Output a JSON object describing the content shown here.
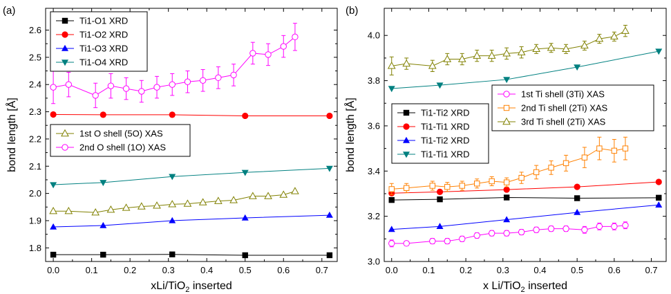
{
  "chart_data": [
    {
      "type": "line",
      "panel_label": "(a)",
      "xlabel": "xLi/TiO",
      "xlabel_sub": "2",
      "xlabel_tail": " inserted",
      "ylabel": "bond length [Å]",
      "xlim": [
        -0.02,
        0.74
      ],
      "ylim": [
        1.75,
        2.68
      ],
      "xticks": [
        0.0,
        0.1,
        0.2,
        0.3,
        0.4,
        0.5,
        0.6,
        0.7
      ],
      "yticks": [
        1.8,
        1.9,
        2.0,
        2.1,
        2.2,
        2.3,
        2.4,
        2.5,
        2.6
      ],
      "xtick_labels": [
        "0.0",
        "0.1",
        "0.2",
        "0.3",
        "0.4",
        "0.5",
        "0.6",
        "0.7"
      ],
      "ytick_labels": [
        "1.8",
        "1.9",
        "2.0",
        "2.1",
        "2.2",
        "2.3",
        "2.4",
        "2.5",
        "2.6"
      ],
      "legends": [
        {
          "group": "xrd",
          "entries": [
            0,
            1,
            2,
            3
          ]
        },
        {
          "group": "xas",
          "entries": [
            4,
            5
          ]
        }
      ],
      "series": [
        {
          "name": "Ti1-O1 XRD",
          "color": "#000000",
          "marker": "square",
          "x": [
            0.0,
            0.13,
            0.31,
            0.5,
            0.72
          ],
          "y": [
            1.775,
            1.775,
            1.776,
            1.773,
            1.773
          ]
        },
        {
          "name": "Ti1-O2 XRD",
          "color": "#ff0000",
          "marker": "circle",
          "x": [
            0.0,
            0.13,
            0.31,
            0.5,
            0.72
          ],
          "y": [
            2.29,
            2.289,
            2.289,
            2.285,
            2.285
          ]
        },
        {
          "name": "Ti1-O3 XRD",
          "color": "#0000ff",
          "marker": "triangle-up",
          "x": [
            0.0,
            0.13,
            0.31,
            0.5,
            0.72
          ],
          "y": [
            1.877,
            1.882,
            1.9,
            1.91,
            1.92
          ]
        },
        {
          "name": "Ti1-O4 XRD",
          "color": "#008080",
          "marker": "triangle-down",
          "x": [
            0.0,
            0.13,
            0.31,
            0.5,
            0.72
          ],
          "y": [
            2.032,
            2.04,
            2.062,
            2.077,
            2.092
          ]
        },
        {
          "name": "1st O shell (5O) XAS",
          "color": "#808000",
          "marker": "open-triangle-up",
          "x": [
            0.0,
            0.04,
            0.11,
            0.15,
            0.19,
            0.23,
            0.27,
            0.31,
            0.35,
            0.39,
            0.43,
            0.47,
            0.52,
            0.56,
            0.6,
            0.63
          ],
          "y": [
            1.935,
            1.935,
            1.93,
            1.94,
            1.947,
            1.952,
            1.955,
            1.96,
            1.962,
            1.967,
            1.972,
            1.975,
            1.99,
            1.99,
            1.995,
            2.008
          ]
        },
        {
          "name": "2nd O shell (1O) XAS",
          "color": "#ff00ff",
          "marker": "open-circle",
          "x": [
            0.0,
            0.04,
            0.11,
            0.15,
            0.19,
            0.23,
            0.27,
            0.31,
            0.35,
            0.39,
            0.43,
            0.47,
            0.52,
            0.56,
            0.6,
            0.63
          ],
          "y": [
            2.39,
            2.4,
            2.36,
            2.395,
            2.385,
            2.375,
            2.39,
            2.4,
            2.41,
            2.415,
            2.425,
            2.435,
            2.515,
            2.51,
            2.54,
            2.575
          ],
          "err": [
            0.06,
            0.045,
            0.045,
            0.045,
            0.04,
            0.04,
            0.04,
            0.04,
            0.04,
            0.04,
            0.04,
            0.04,
            0.04,
            0.04,
            0.04,
            0.05
          ]
        }
      ]
    },
    {
      "type": "line",
      "panel_label": "(b)",
      "xlabel": "x Li/TiO",
      "xlabel_sub": "2",
      "xlabel_tail": " inserted",
      "ylabel": "bond length [Å]",
      "xlim": [
        -0.02,
        0.74
      ],
      "ylim": [
        3.0,
        4.12
      ],
      "xticks": [
        0.0,
        0.1,
        0.2,
        0.3,
        0.4,
        0.5,
        0.6,
        0.7
      ],
      "yticks": [
        3.0,
        3.2,
        3.4,
        3.6,
        3.8,
        4.0
      ],
      "xtick_labels": [
        "0.0",
        "0.1",
        "0.2",
        "0.3",
        "0.4",
        "0.5",
        "0.6",
        "0.7"
      ],
      "ytick_labels": [
        "3.0",
        "3.2",
        "3.4",
        "3.6",
        "3.8",
        "4.0"
      ],
      "legends": [
        {
          "group": "xrd",
          "entries": [
            0,
            1,
            2,
            3
          ]
        },
        {
          "group": "xas",
          "entries": [
            4,
            5,
            6
          ]
        }
      ],
      "series": [
        {
          "name": "Ti1-Ti2 XRD",
          "color": "#000000",
          "marker": "square",
          "x": [
            0.0,
            0.13,
            0.31,
            0.5,
            0.72
          ],
          "y": [
            3.272,
            3.275,
            3.283,
            3.28,
            3.282
          ]
        },
        {
          "name": "Ti1-Ti1 XRD",
          "color": "#ff0000",
          "marker": "circle",
          "x": [
            0.0,
            0.13,
            0.31,
            0.5,
            0.72
          ],
          "y": [
            3.302,
            3.308,
            3.318,
            3.33,
            3.352
          ]
        },
        {
          "name": "Ti1-Ti2 XRD",
          "color": "#0000ff",
          "marker": "triangle-up",
          "x": [
            0.0,
            0.13,
            0.31,
            0.5,
            0.72
          ],
          "y": [
            3.142,
            3.155,
            3.185,
            3.217,
            3.25
          ]
        },
        {
          "name": "Ti1-Ti1 XRD",
          "color": "#008080",
          "marker": "triangle-down",
          "x": [
            0.0,
            0.13,
            0.31,
            0.5,
            0.72
          ],
          "y": [
            3.765,
            3.78,
            3.805,
            3.86,
            3.93
          ]
        },
        {
          "name": "1st Ti shell (3Ti) XAS",
          "color": "#ff00ff",
          "marker": "open-circle",
          "x": [
            0.0,
            0.04,
            0.11,
            0.15,
            0.19,
            0.23,
            0.27,
            0.31,
            0.35,
            0.39,
            0.43,
            0.47,
            0.52,
            0.56,
            0.6,
            0.63
          ],
          "y": [
            3.08,
            3.08,
            3.09,
            3.09,
            3.1,
            3.115,
            3.125,
            3.125,
            3.13,
            3.14,
            3.145,
            3.145,
            3.14,
            3.155,
            3.155,
            3.16
          ],
          "err": [
            0.015,
            0.01,
            0.012,
            0.012,
            0.012,
            0.012,
            0.012,
            0.012,
            0.012,
            0.012,
            0.012,
            0.012,
            0.015,
            0.015,
            0.015,
            0.015
          ]
        },
        {
          "name": "2nd Ti shell (2Ti) XAS",
          "color": "#ff8000",
          "marker": "open-square",
          "x": [
            0.0,
            0.04,
            0.11,
            0.15,
            0.19,
            0.23,
            0.27,
            0.31,
            0.35,
            0.39,
            0.43,
            0.47,
            0.52,
            0.56,
            0.6,
            0.63
          ],
          "y": [
            3.32,
            3.325,
            3.335,
            3.33,
            3.335,
            3.345,
            3.355,
            3.35,
            3.37,
            3.395,
            3.415,
            3.435,
            3.46,
            3.5,
            3.49,
            3.5
          ],
          "err": [
            0.025,
            0.02,
            0.02,
            0.02,
            0.02,
            0.02,
            0.02,
            0.02,
            0.025,
            0.03,
            0.03,
            0.035,
            0.045,
            0.05,
            0.05,
            0.05
          ]
        },
        {
          "name": "3rd Ti shell (2Ti) XAS",
          "color": "#808000",
          "marker": "open-triangle-up",
          "x": [
            0.0,
            0.04,
            0.11,
            0.15,
            0.19,
            0.23,
            0.27,
            0.31,
            0.35,
            0.39,
            0.43,
            0.47,
            0.52,
            0.56,
            0.6,
            0.63
          ],
          "y": [
            3.865,
            3.875,
            3.865,
            3.895,
            3.895,
            3.91,
            3.91,
            3.92,
            3.925,
            3.94,
            3.945,
            3.94,
            3.955,
            3.985,
            3.995,
            4.02
          ],
          "err": [
            0.04,
            0.025,
            0.025,
            0.025,
            0.025,
            0.025,
            0.025,
            0.025,
            0.025,
            0.02,
            0.02,
            0.02,
            0.02,
            0.02,
            0.02,
            0.025
          ]
        }
      ]
    }
  ]
}
